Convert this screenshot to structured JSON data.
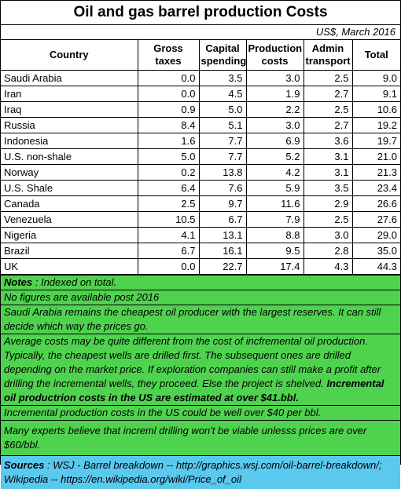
{
  "title": "Oil and gas barrel production Costs",
  "subtitle": "US$, March 2016",
  "columns": [
    "Country",
    "Gross taxes",
    "Capital\nspending",
    "Production\ncosts",
    "Admin\ntransport",
    "Total"
  ],
  "rows": [
    [
      "Saudi Arabia",
      "0.0",
      "3.5",
      "3.0",
      "2.5",
      "9.0"
    ],
    [
      "Iran",
      "0.0",
      "4.5",
      "1.9",
      "2.7",
      "9.1"
    ],
    [
      "Iraq",
      "0.9",
      "5.0",
      "2.2",
      "2.5",
      "10.6"
    ],
    [
      "Russia",
      "8.4",
      "5.1",
      "3.0",
      "2.7",
      "19.2"
    ],
    [
      "Indonesia",
      "1.6",
      "7.7",
      "6.9",
      "3.6",
      "19.7"
    ],
    [
      "U.S. non-shale",
      "5.0",
      "7.7",
      "5.2",
      "3.1",
      "21.0"
    ],
    [
      "Norway",
      "0.2",
      "13.8",
      "4.2",
      "3.1",
      "21.3"
    ],
    [
      "U.S. Shale",
      "6.4",
      "7.6",
      "5.9",
      "3.5",
      "23.4"
    ],
    [
      "Canada",
      "2.5",
      "9.7",
      "11.6",
      "2.9",
      "26.6"
    ],
    [
      "Venezuela",
      "10.5",
      "6.7",
      "7.9",
      "2.5",
      "27.6"
    ],
    [
      "Nigeria",
      "4.1",
      "13.1",
      "8.8",
      "3.0",
      "29.0"
    ],
    [
      "Brazil",
      "6.7",
      "16.1",
      "9.5",
      "2.8",
      "35.0"
    ],
    [
      "UK",
      "0.0",
      "22.7",
      "17.4",
      "4.3",
      "44.3"
    ]
  ],
  "notes": {
    "n1_label": "Notes",
    "n1_text": " : Indexed on total.",
    "n2": "No figures are available post 2016",
    "n3": "Saudi Arabia remains the cheapest oil producer with the largest reserves.  It can still decide which way the prices go.",
    "n4_text": "Average costs may be quite different from the cost of incfremental oil production.  Typically, the cheapest wells are drilled first.  The subsequent ones are drilled depending on the market price.  If exploration companies can still make a profit after drilling the incremental wells, they proceed.  Else the project is shelved.  ",
    "n4_bold": "Incremental oil productrion costs in the US are estimated at over $41.bbl.",
    "n5": "Incremental production costs in the US could be well over $40 per bbl.",
    "n6": "Many experts believe that increml drilling won't be viable unlesss prices are over $60/bbl."
  },
  "sources": {
    "label": "Sources",
    "text": " : WSJ - Barrel breakdown -- http://graphics.wsj.com/oil-barrel-breakdown/; Wikipedia -- https://en.wikipedia.org/wiki/Price_of_oil"
  },
  "colors": {
    "notes_background": "#4fd34f",
    "sources_background": "#5bc8ee"
  }
}
